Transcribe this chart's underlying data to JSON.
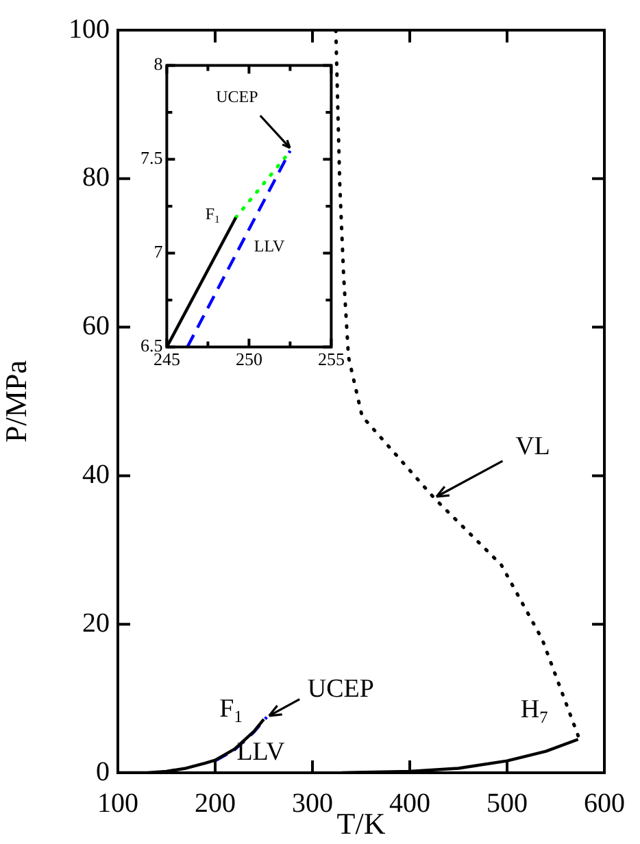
{
  "chart_data": [
    {
      "type": "line",
      "xlabel": "T/K",
      "ylabel": "P/MPa",
      "xlim": [
        100,
        600
      ],
      "ylim": [
        0,
        100
      ],
      "xticks": [
        100,
        200,
        300,
        400,
        500,
        600
      ],
      "yticks": [
        0,
        20,
        40,
        60,
        80,
        100
      ],
      "legend": false,
      "marker": "none",
      "series": [
        {
          "color": "#000000",
          "line_style": "solid",
          "x": [
            100,
            130,
            150,
            170,
            190,
            200,
            220,
            240,
            250
          ],
          "values": [
            0,
            0,
            0.2,
            0.6,
            1.3,
            1.7,
            3.2,
            5.6,
            7.2
          ]
        },
        {
          "color": "#0000ff",
          "line_style": "dashed",
          "x": [
            200,
            220,
            240,
            253
          ],
          "values": [
            1.6,
            3.1,
            5.5,
            7.5
          ]
        },
        {
          "color": "#000000",
          "line_style": "solid",
          "x": [
            330,
            400,
            450,
            500,
            540,
            573
          ],
          "values": [
            0,
            0.2,
            0.6,
            1.6,
            2.9,
            4.5
          ]
        },
        {
          "color": "#000000",
          "line_style": "dotted",
          "x": [
            324,
            328,
            332,
            337,
            351,
            425,
            494,
            536,
            573
          ],
          "values": [
            100,
            79.5,
            67,
            56,
            48,
            37,
            28,
            18,
            5
          ]
        }
      ],
      "annotations": [
        {
          "text": "VL",
          "x": 425,
          "y": 37
        },
        {
          "text": "UCEP",
          "x": 253,
          "y": 7.5
        },
        {
          "text": "F$_{1}$",
          "x": 250,
          "y": 7.2
        },
        {
          "text": "LLV",
          "x": 230,
          "y": 4.5
        },
        {
          "text": "H$_{7}$",
          "x": 573,
          "y": 4.55
        }
      ]
    },
    {
      "type": "line",
      "xlim": [
        245,
        255
      ],
      "ylim": [
        6.5,
        8
      ],
      "xticks": [
        245,
        {
          "value": 247.5,
          "label": null
        },
        250,
        {
          "value": 252.5,
          "label": null
        },
        255
      ],
      "yticks": [
        6.5,
        {
          "value": 6.75,
          "label": null
        },
        7,
        {
          "value": 7.25,
          "label": null
        },
        7.5,
        {
          "value": 7.75,
          "label": null
        },
        8
      ],
      "legend": false,
      "marker": "none",
      "series": [
        {
          "color": "#000000",
          "line_style": "solid",
          "x": [
            245,
            249.2
          ],
          "values": [
            6.5,
            7.19
          ]
        },
        {
          "color": "#00ff00",
          "line_style": "dotted",
          "x": [
            249.2,
            252.2
          ],
          "values": [
            7.19,
            7.51
          ]
        },
        {
          "color": "#0000ff",
          "line_style": "dashed",
          "x": [
            246.25,
            252.5
          ],
          "values": [
            6.5,
            7.545
          ]
        }
      ],
      "annotations": [
        {
          "text": "UCEP",
          "x": 252.6,
          "y": 7.55
        },
        {
          "text": "F$_{1}$",
          "x": 249.2,
          "y": 7.19
        },
        {
          "text": "LLV",
          "x": 250.4,
          "y": 7.194
        }
      ]
    }
  ]
}
